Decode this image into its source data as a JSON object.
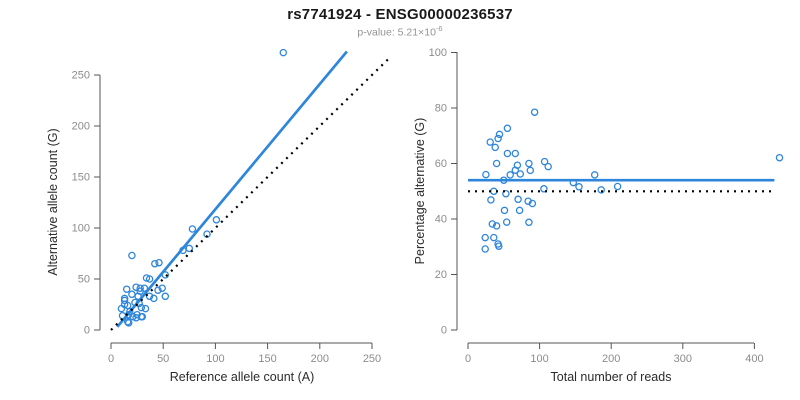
{
  "header": {
    "title": "rs7741924 - ENSG00000236537",
    "subtitle_base": "p-value: 5.21×10",
    "subtitle_exponent": "-6"
  },
  "colors": {
    "accent_blue": "#2E86DB",
    "dotted_black": "#000000",
    "tick_gray": "#8C8C8C",
    "axis_line": "#555555",
    "title_black": "#1A1A1A",
    "subtitle_gray": "#939393"
  },
  "chart_data": [
    {
      "type": "scatter",
      "name": "allele-counts-panel",
      "xlabel": "Reference allele count (A)",
      "ylabel": "Alternative allele count (G)",
      "xlim": [
        0,
        262
      ],
      "ylim": [
        0,
        278
      ],
      "xticks": [
        0,
        50,
        100,
        150,
        200,
        250
      ],
      "yticks": [
        0,
        50,
        100,
        150,
        200,
        250
      ],
      "grid": false,
      "legend": "none",
      "points": [
        [
          165,
          272
        ],
        [
          101,
          108
        ],
        [
          78,
          99
        ],
        [
          92,
          94
        ],
        [
          75,
          80
        ],
        [
          69,
          78
        ],
        [
          20,
          73
        ],
        [
          46,
          66
        ],
        [
          42,
          65
        ],
        [
          52,
          54
        ],
        [
          34,
          51
        ],
        [
          37,
          50
        ],
        [
          49,
          41
        ],
        [
          45,
          39
        ],
        [
          32,
          41
        ],
        [
          28,
          41
        ],
        [
          24,
          42
        ],
        [
          15,
          40
        ],
        [
          28,
          38
        ],
        [
          20,
          35
        ],
        [
          26,
          33
        ],
        [
          52,
          33
        ],
        [
          37,
          33
        ],
        [
          41,
          31
        ],
        [
          13,
          31
        ],
        [
          13,
          29
        ],
        [
          23,
          27
        ],
        [
          27,
          26
        ],
        [
          13,
          25
        ],
        [
          16,
          24
        ],
        [
          29,
          22
        ],
        [
          33,
          21
        ],
        [
          10,
          21
        ],
        [
          18,
          18
        ],
        [
          17,
          15
        ],
        [
          25,
          15
        ],
        [
          21,
          13
        ],
        [
          29,
          13
        ],
        [
          24,
          12
        ],
        [
          30,
          13
        ],
        [
          11,
          14
        ],
        [
          16,
          8
        ],
        [
          17,
          7
        ]
      ],
      "lines": [
        {
          "name": "regression-line",
          "style": "solid",
          "color": "#2E86DB",
          "x1": 6,
          "y1": 3,
          "x2": 226,
          "y2": 273
        },
        {
          "name": "identity-line",
          "style": "dotted",
          "color": "#000000",
          "x1": 0,
          "y1": 0,
          "x2": 268,
          "y2": 268
        }
      ]
    },
    {
      "type": "scatter",
      "name": "percentage-panel",
      "xlabel": "Total number of reads",
      "ylabel": "Percentage alternative (G)",
      "xlim": [
        0,
        435
      ],
      "ylim": [
        0,
        100
      ],
      "xticks": [
        0,
        100,
        200,
        300,
        400
      ],
      "yticks": [
        0,
        20,
        40,
        60,
        80,
        100
      ],
      "grid": false,
      "legend": "none",
      "points": [
        [
          435,
          62.1
        ],
        [
          209,
          51.7
        ],
        [
          177,
          55.9
        ],
        [
          186,
          50.5
        ],
        [
          155,
          51.6
        ],
        [
          147,
          53.1
        ],
        [
          93,
          78.5
        ],
        [
          112,
          58.9
        ],
        [
          107,
          60.7
        ],
        [
          106,
          50.9
        ],
        [
          85,
          60.0
        ],
        [
          87,
          57.5
        ],
        [
          90,
          45.6
        ],
        [
          84,
          46.4
        ],
        [
          73,
          56.2
        ],
        [
          69,
          59.4
        ],
        [
          66,
          63.6
        ],
        [
          55,
          72.7
        ],
        [
          66,
          57.6
        ],
        [
          55,
          63.6
        ],
        [
          59,
          55.9
        ],
        [
          85,
          38.8
        ],
        [
          70,
          47.1
        ],
        [
          72,
          43.1
        ],
        [
          44,
          70.5
        ],
        [
          42,
          69.0
        ],
        [
          50,
          54.0
        ],
        [
          53,
          49.1
        ],
        [
          38,
          65.8
        ],
        [
          40,
          60.0
        ],
        [
          51,
          43.1
        ],
        [
          54,
          38.9
        ],
        [
          31,
          67.7
        ],
        [
          36,
          50.0
        ],
        [
          32,
          46.9
        ],
        [
          40,
          37.5
        ],
        [
          34,
          38.2
        ],
        [
          42,
          31.0
        ],
        [
          36,
          33.3
        ],
        [
          43,
          30.2
        ],
        [
          25,
          56.0
        ],
        [
          24,
          33.3
        ],
        [
          24,
          29.2
        ]
      ],
      "lines": [
        {
          "name": "mean-percentage-line",
          "style": "solid",
          "color": "#2E86DB",
          "x1": 0,
          "y1": 54,
          "x2": 428,
          "y2": 54
        },
        {
          "name": "fifty-percent-line",
          "style": "dotted",
          "color": "#000000",
          "x1": 0,
          "y1": 50,
          "x2": 430,
          "y2": 50
        }
      ]
    }
  ]
}
